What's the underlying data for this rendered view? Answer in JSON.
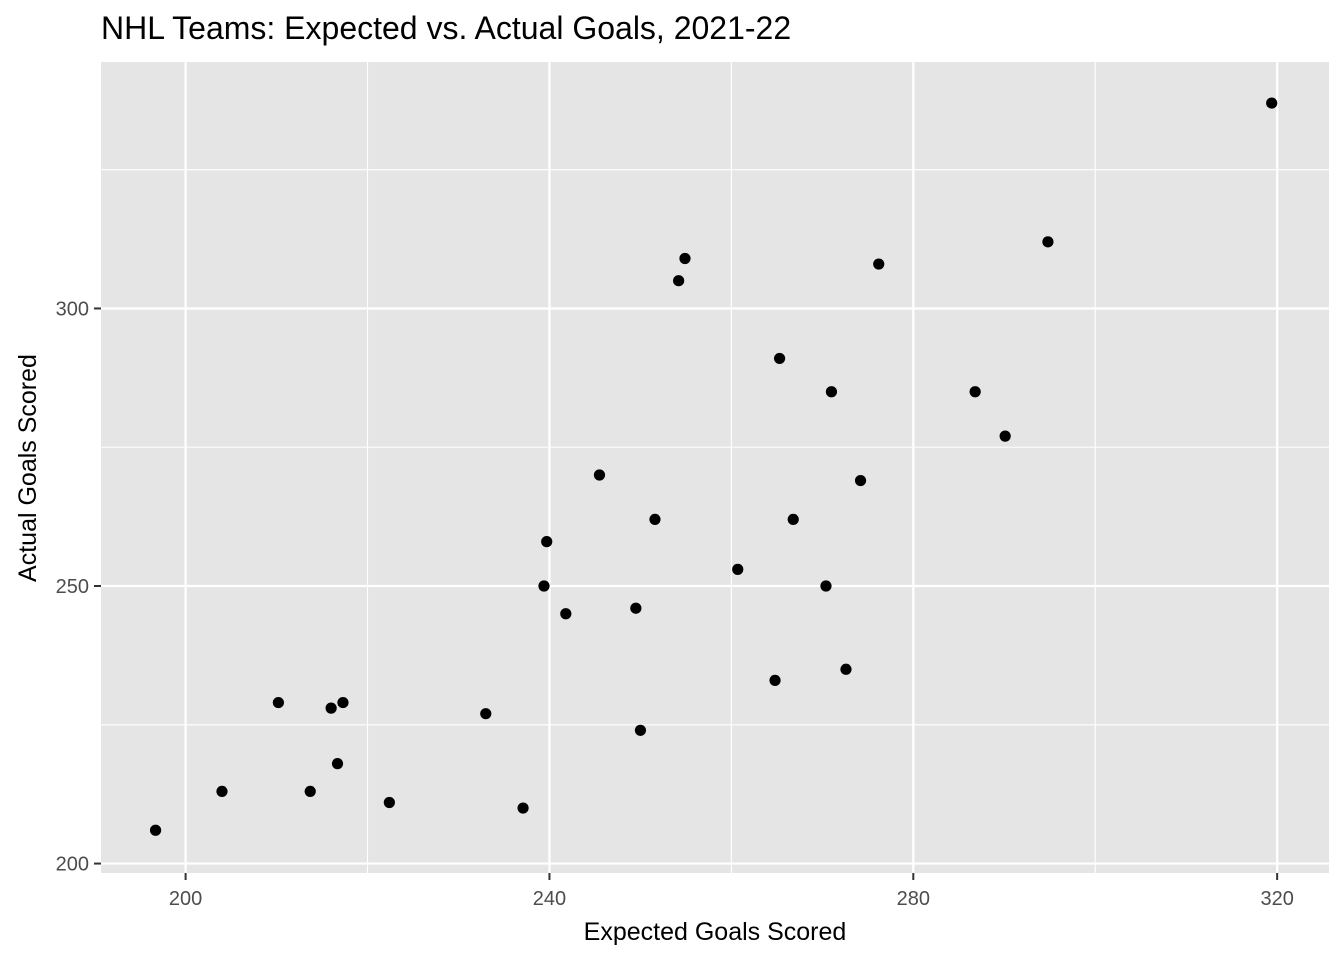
{
  "chart_data": {
    "type": "scatter",
    "title": "NHL Teams: Expected vs. Actual Goals, 2021-22",
    "xlabel": "Expected Goals Scored",
    "ylabel": "Actual Goals Scored",
    "xlim": [
      190.7,
      325.7
    ],
    "ylim": [
      198.3,
      344.4
    ],
    "x_ticks": [
      200,
      240,
      280,
      320
    ],
    "y_ticks": [
      200,
      250,
      300
    ],
    "grid": true,
    "legend": "none",
    "colors": {
      "panel": "#e5e5e5",
      "grid": "#ffffff",
      "point": "#000000",
      "tick_text": "#4d4d4d",
      "tick_mark": "#333333"
    },
    "points": [
      {
        "x": 196.7,
        "y": 206
      },
      {
        "x": 204.0,
        "y": 213
      },
      {
        "x": 210.2,
        "y": 229
      },
      {
        "x": 213.7,
        "y": 213
      },
      {
        "x": 216.0,
        "y": 228
      },
      {
        "x": 216.7,
        "y": 218
      },
      {
        "x": 217.3,
        "y": 229
      },
      {
        "x": 222.4,
        "y": 211
      },
      {
        "x": 233.0,
        "y": 227
      },
      {
        "x": 237.1,
        "y": 210
      },
      {
        "x": 239.4,
        "y": 250
      },
      {
        "x": 239.7,
        "y": 258
      },
      {
        "x": 241.8,
        "y": 245
      },
      {
        "x": 245.5,
        "y": 270
      },
      {
        "x": 249.5,
        "y": 246
      },
      {
        "x": 250.0,
        "y": 224
      },
      {
        "x": 251.6,
        "y": 262
      },
      {
        "x": 254.2,
        "y": 305
      },
      {
        "x": 254.9,
        "y": 309
      },
      {
        "x": 260.7,
        "y": 253
      },
      {
        "x": 264.8,
        "y": 233
      },
      {
        "x": 265.3,
        "y": 291
      },
      {
        "x": 266.8,
        "y": 262
      },
      {
        "x": 270.4,
        "y": 250
      },
      {
        "x": 271.0,
        "y": 285
      },
      {
        "x": 272.6,
        "y": 235
      },
      {
        "x": 274.2,
        "y": 269
      },
      {
        "x": 276.2,
        "y": 308
      },
      {
        "x": 286.8,
        "y": 285
      },
      {
        "x": 290.1,
        "y": 277
      },
      {
        "x": 294.8,
        "y": 312
      },
      {
        "x": 319.4,
        "y": 337
      }
    ]
  }
}
